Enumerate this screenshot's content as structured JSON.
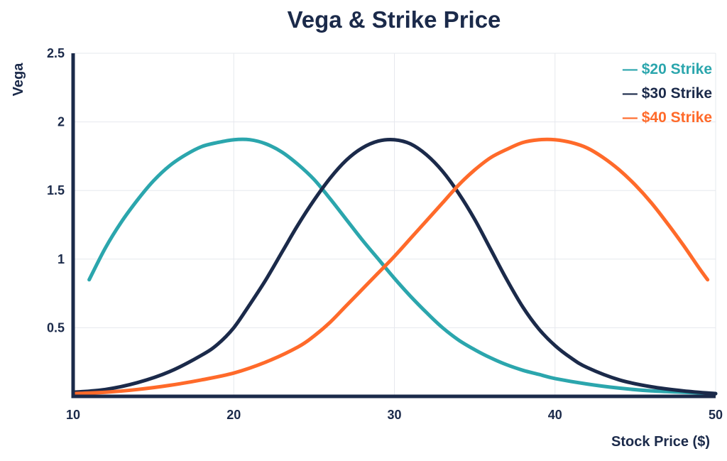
{
  "colors": {
    "axis": "#1b2a4a",
    "grid": "#e6e8ee",
    "title": "#1b2a4a"
  },
  "chart_data": {
    "type": "line",
    "title": "Vega & Strike Price",
    "xlabel": "Stock Price ($)",
    "ylabel": "Vega",
    "xlim": [
      10,
      50
    ],
    "ylim": [
      0,
      2.5
    ],
    "x_ticks": [
      10,
      20,
      30,
      40,
      50
    ],
    "y_ticks": [
      0.5,
      1,
      1.5,
      2,
      2.5
    ],
    "y_tick_labels": [
      "0.5",
      "1",
      "1.5",
      "2",
      "2.5"
    ],
    "grid": true,
    "legend_position": "top-right",
    "series": [
      {
        "name": "$20 Strike",
        "color": "#2ba6ad",
        "points": [
          [
            11,
            0.85
          ],
          [
            12,
            1.08
          ],
          [
            13,
            1.27
          ],
          [
            14,
            1.43
          ],
          [
            15,
            1.57
          ],
          [
            16,
            1.68
          ],
          [
            17,
            1.76
          ],
          [
            18,
            1.82
          ],
          [
            19,
            1.85
          ],
          [
            20,
            1.87
          ],
          [
            21,
            1.87
          ],
          [
            22,
            1.84
          ],
          [
            23,
            1.78
          ],
          [
            24,
            1.69
          ],
          [
            25,
            1.58
          ],
          [
            26,
            1.44
          ],
          [
            27,
            1.29
          ],
          [
            28,
            1.14
          ],
          [
            29,
            1.0
          ],
          [
            30,
            0.86
          ],
          [
            31,
            0.73
          ],
          [
            32,
            0.61
          ],
          [
            33,
            0.5
          ],
          [
            34,
            0.41
          ],
          [
            35,
            0.34
          ],
          [
            36,
            0.28
          ],
          [
            37,
            0.23
          ],
          [
            38,
            0.19
          ],
          [
            39,
            0.16
          ],
          [
            40,
            0.13
          ],
          [
            42,
            0.09
          ],
          [
            44,
            0.06
          ],
          [
            46,
            0.04
          ],
          [
            48,
            0.03
          ],
          [
            50,
            0.02
          ]
        ]
      },
      {
        "name": "$30 Strike",
        "color": "#1b2a4a",
        "points": [
          [
            10,
            0.03
          ],
          [
            12,
            0.05
          ],
          [
            14,
            0.1
          ],
          [
            16,
            0.18
          ],
          [
            18,
            0.3
          ],
          [
            19,
            0.38
          ],
          [
            20,
            0.5
          ],
          [
            21,
            0.67
          ],
          [
            22,
            0.85
          ],
          [
            23,
            1.05
          ],
          [
            24,
            1.25
          ],
          [
            25,
            1.43
          ],
          [
            26,
            1.59
          ],
          [
            27,
            1.72
          ],
          [
            28,
            1.81
          ],
          [
            29,
            1.86
          ],
          [
            30,
            1.87
          ],
          [
            31,
            1.84
          ],
          [
            32,
            1.76
          ],
          [
            33,
            1.64
          ],
          [
            34,
            1.48
          ],
          [
            35,
            1.29
          ],
          [
            36,
            1.07
          ],
          [
            37,
            0.85
          ],
          [
            38,
            0.65
          ],
          [
            39,
            0.49
          ],
          [
            40,
            0.37
          ],
          [
            41,
            0.28
          ],
          [
            42,
            0.21
          ],
          [
            44,
            0.12
          ],
          [
            46,
            0.07
          ],
          [
            48,
            0.04
          ],
          [
            50,
            0.02
          ]
        ]
      },
      {
        "name": "$40 Strike",
        "color": "#ff6a2a",
        "points": [
          [
            10,
            0.02
          ],
          [
            12,
            0.03
          ],
          [
            14,
            0.05
          ],
          [
            16,
            0.08
          ],
          [
            18,
            0.12
          ],
          [
            20,
            0.17
          ],
          [
            22,
            0.25
          ],
          [
            24,
            0.36
          ],
          [
            25,
            0.44
          ],
          [
            26,
            0.54
          ],
          [
            27,
            0.66
          ],
          [
            28,
            0.78
          ],
          [
            29,
            0.9
          ],
          [
            30,
            1.02
          ],
          [
            31,
            1.15
          ],
          [
            32,
            1.28
          ],
          [
            33,
            1.41
          ],
          [
            34,
            1.54
          ],
          [
            35,
            1.65
          ],
          [
            36,
            1.74
          ],
          [
            37,
            1.8
          ],
          [
            38,
            1.85
          ],
          [
            39,
            1.87
          ],
          [
            40,
            1.87
          ],
          [
            41,
            1.85
          ],
          [
            42,
            1.81
          ],
          [
            43,
            1.74
          ],
          [
            44,
            1.65
          ],
          [
            45,
            1.54
          ],
          [
            46,
            1.41
          ],
          [
            47,
            1.26
          ],
          [
            48,
            1.1
          ],
          [
            49,
            0.93
          ],
          [
            49.5,
            0.85
          ]
        ]
      }
    ]
  }
}
